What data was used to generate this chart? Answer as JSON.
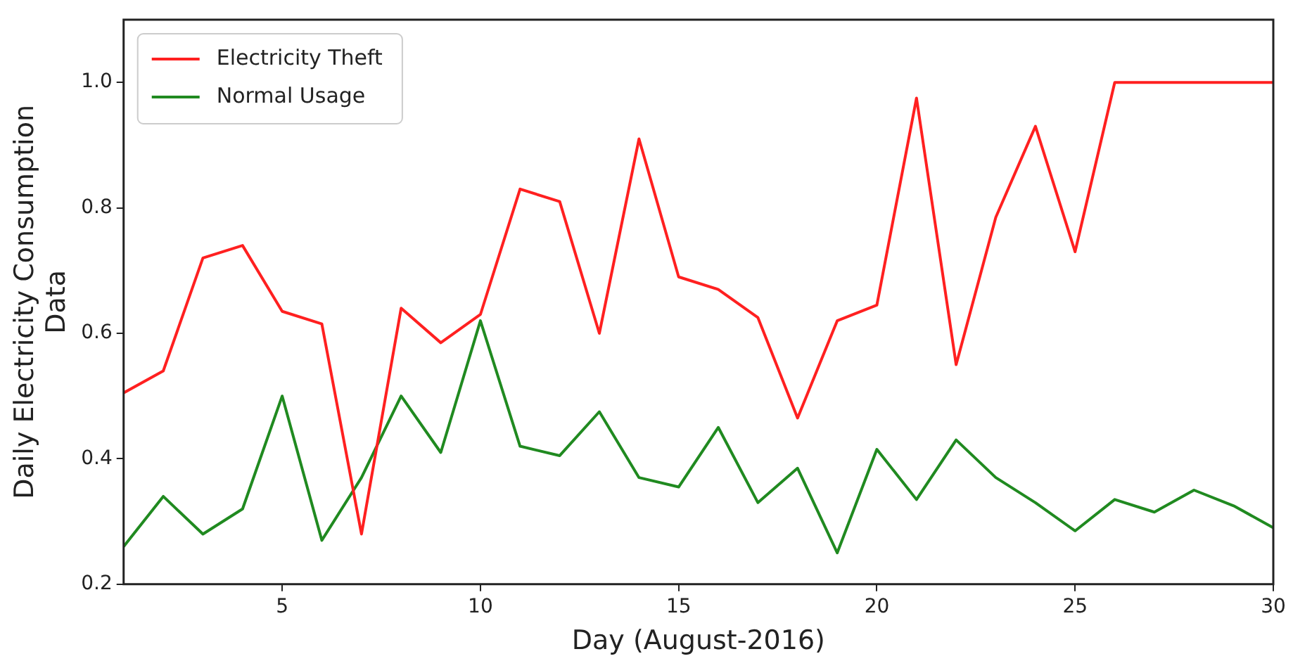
{
  "chart_data": {
    "type": "line",
    "xlabel": "Day (August-2016)",
    "ylabel": "Daily Electricity Consumption\nData",
    "x": [
      1,
      2,
      3,
      4,
      5,
      6,
      7,
      8,
      9,
      10,
      11,
      12,
      13,
      14,
      15,
      16,
      17,
      18,
      19,
      20,
      21,
      22,
      23,
      24,
      25,
      26,
      27,
      28,
      29,
      30
    ],
    "series": [
      {
        "name": "Electricity Theft",
        "color": "#ff2020",
        "values": [
          0.505,
          0.54,
          0.72,
          0.74,
          0.635,
          0.615,
          0.28,
          0.64,
          0.585,
          0.63,
          0.83,
          0.81,
          0.6,
          0.91,
          0.69,
          0.67,
          0.625,
          0.465,
          0.62,
          0.645,
          0.975,
          0.55,
          0.785,
          0.93,
          0.73,
          1,
          1,
          1,
          1,
          1
        ]
      },
      {
        "name": "Normal Usage",
        "color": "#208a20",
        "values": [
          0.26,
          0.34,
          0.28,
          0.32,
          0.5,
          0.27,
          0.37,
          0.5,
          0.41,
          0.62,
          0.42,
          0.405,
          0.475,
          0.37,
          0.355,
          0.45,
          0.33,
          0.385,
          0.25,
          0.415,
          0.335,
          0.43,
          0.37,
          0.33,
          0.285,
          0.335,
          0.315,
          0.35,
          0.325,
          0.29
        ]
      }
    ],
    "xlim": [
      1,
      30
    ],
    "xticks": [
      5,
      10,
      15,
      20,
      25,
      30
    ],
    "ylim": [
      0.2,
      1.1
    ],
    "yticks": [
      0.2,
      0.4,
      0.6,
      0.8,
      {
        "value": 1,
        "label": "1.0"
      }
    ],
    "grid": false,
    "legend": "top left",
    "marker": "none",
    "line_style": "solid"
  }
}
